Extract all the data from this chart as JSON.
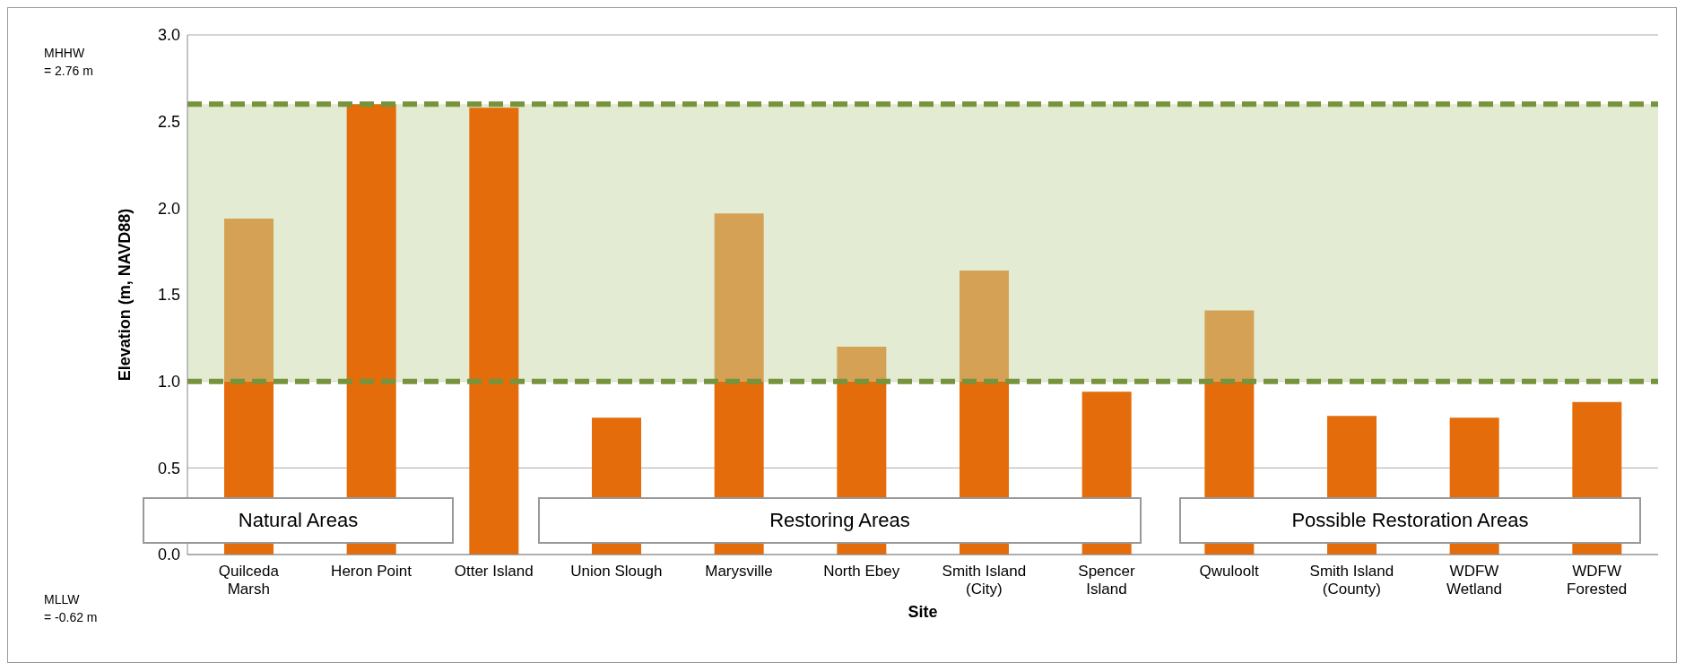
{
  "chart_data": {
    "type": "bar",
    "stacked": true,
    "xlabel": "Site",
    "ylabel": "Elevation (m, NAVD88)",
    "categories": [
      "Quilceda\nMarsh",
      "Heron Point",
      "Otter Island",
      "Union Slough",
      "Marysville",
      "North Ebey",
      "Smith Island\n(City)",
      "Spencer\nIsland",
      "Qwuloolt",
      "Smith Island\n(County)",
      "WDFW\nWetland",
      "WDFW\nForested"
    ],
    "series": [
      {
        "color": "#e46c0a",
        "values": [
          1.0,
          2.6,
          2.58,
          0.79,
          1.0,
          1.0,
          1.0,
          0.94,
          1.0,
          0.8,
          0.79,
          0.88
        ]
      },
      {
        "color": "#d5a255",
        "values": [
          0.94,
          null,
          null,
          null,
          0.97,
          0.2,
          0.64,
          null,
          0.41,
          null,
          null,
          null
        ]
      }
    ],
    "ylim": [
      0,
      3
    ],
    "yticks": [
      {
        "value": 0,
        "label": "0.0"
      },
      {
        "value": 0.5,
        "label": "0.5"
      },
      {
        "value": 1,
        "label": "1.0"
      },
      {
        "value": 1.5,
        "label": "1.5"
      },
      {
        "value": 2,
        "label": "2.0"
      },
      {
        "value": 2.5,
        "label": "2.5"
      },
      {
        "value": 3,
        "label": "3.0"
      }
    ],
    "grid": "y",
    "bands": [
      {
        "axis": "y",
        "from": 1.0,
        "to": 2.6,
        "color": "#e3ebd2"
      }
    ],
    "ref_lines": [
      {
        "axis": "y",
        "value": 1.0,
        "color": "#77933c",
        "line_style": "dashed"
      },
      {
        "axis": "y",
        "value": 2.6,
        "color": "#77933c",
        "line_style": "dashed"
      }
    ],
    "annotations": [
      "MHHW\n= 2.76 m",
      "MLLW\n= -0.62 m",
      "Natural Areas",
      "Restoring Areas",
      "Possible Restoration Areas"
    ]
  }
}
